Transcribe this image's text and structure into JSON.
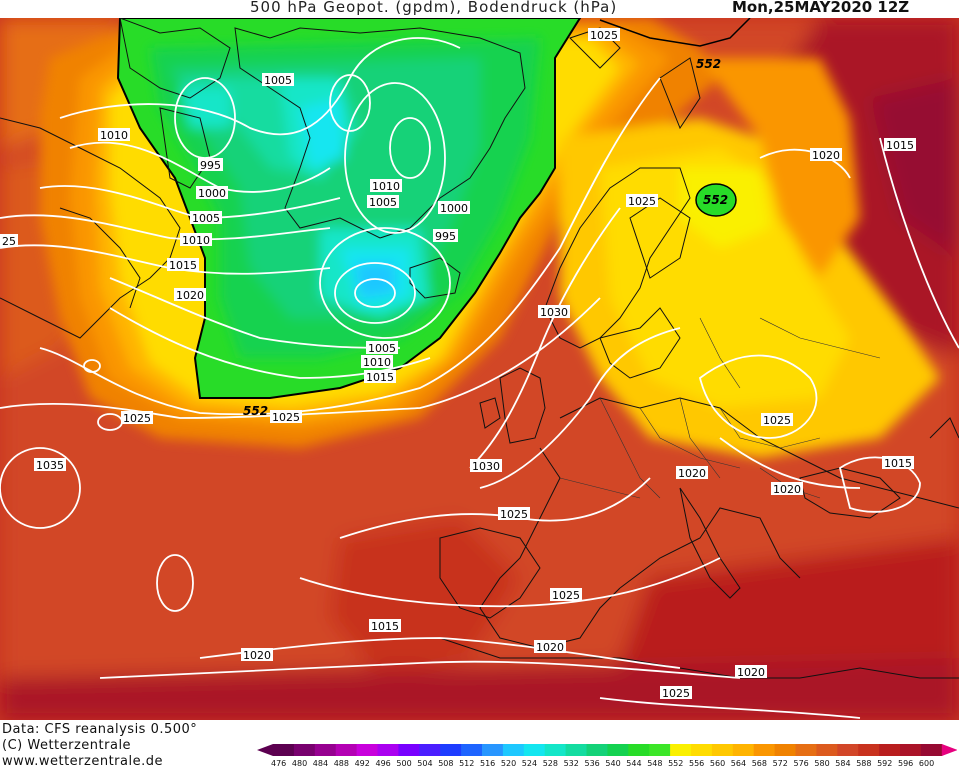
{
  "header": {
    "title": "500 hPa Geopot. (gpdm), Bodendruck (hPa)",
    "valid_time": "Mon,25MAY2020 12Z"
  },
  "footer": {
    "data_source": "Data: CFS reanalysis 0.500°",
    "copyright": "(C) Wetterzentrale",
    "website": "www.wetterzentrale.de"
  },
  "legend": {
    "values": [
      "476",
      "480",
      "484",
      "488",
      "492",
      "496",
      "500",
      "504",
      "508",
      "512",
      "516",
      "520",
      "524",
      "528",
      "532",
      "536",
      "540",
      "544",
      "548",
      "552",
      "556",
      "560",
      "564",
      "568",
      "572",
      "576",
      "580",
      "584",
      "588",
      "592",
      "596",
      "600"
    ],
    "colors": [
      "#5c0050",
      "#78006e",
      "#960090",
      "#b400b4",
      "#c800dc",
      "#aa00f0",
      "#7800ff",
      "#4b1eff",
      "#1e3cff",
      "#1e64ff",
      "#2896ff",
      "#1ec8ff",
      "#14e6f0",
      "#14e6c8",
      "#14dca0",
      "#14d278",
      "#14d250",
      "#28dc28",
      "#3ce628",
      "#faf000",
      "#ffdc00",
      "#ffc800",
      "#ffb400",
      "#fa9600",
      "#f08200",
      "#e66e14",
      "#dc5a1e",
      "#d24628",
      "#c8321e",
      "#b91e1e",
      "#aa1428",
      "#960a32"
    ],
    "end_arrow_colors": [
      "#5c0050",
      "#e6007e"
    ]
  },
  "map": {
    "center_low_value": "552",
    "isobars": [
      "1025",
      "1005",
      "1010",
      "995",
      "1000",
      "1005",
      "1010",
      "1015",
      "1020",
      "25",
      "1010",
      "1005",
      "1000",
      "995",
      "1005",
      "1010",
      "1015",
      "1030",
      "1025",
      "1025",
      "1035",
      "1030",
      "1025",
      "1025",
      "1020",
      "1020",
      "1015",
      "1025",
      "1020",
      "1025",
      "1020",
      "1020",
      "1015",
      "1025",
      "1020",
      "1015"
    ],
    "geopotential_labels": [
      "552",
      "552",
      "552"
    ]
  }
}
